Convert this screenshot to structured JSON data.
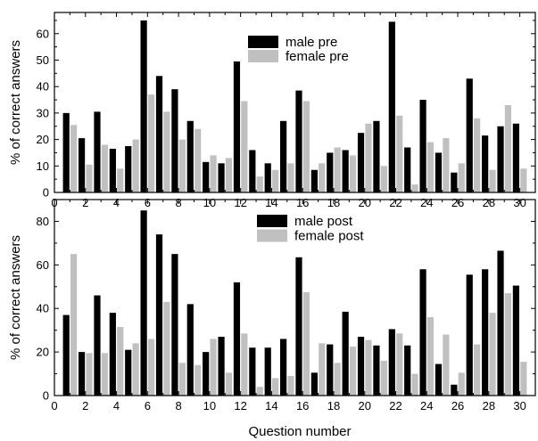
{
  "figure": {
    "xlabel": "Question number"
  },
  "chart_data": [
    {
      "type": "bar",
      "title": "",
      "xlabel": "",
      "ylabel": "% of correct answers",
      "x": [
        1,
        2,
        3,
        4,
        5,
        6,
        7,
        8,
        9,
        10,
        11,
        12,
        13,
        14,
        15,
        16,
        17,
        18,
        19,
        20,
        21,
        22,
        23,
        24,
        25,
        26,
        27,
        28,
        29,
        30
      ],
      "xlim": [
        0,
        31
      ],
      "xticks": [
        0,
        2,
        4,
        6,
        8,
        10,
        12,
        14,
        16,
        18,
        20,
        22,
        24,
        26,
        28,
        30
      ],
      "ylim": [
        0,
        68
      ],
      "yticks": [
        0,
        10,
        20,
        30,
        40,
        50,
        60
      ],
      "legend_position": "top-center",
      "series": [
        {
          "name": "male pre",
          "color": "#000000",
          "values": [
            30,
            20.5,
            30.5,
            16.5,
            17.5,
            65,
            44,
            39,
            27,
            11.5,
            11,
            49.5,
            16,
            11,
            27,
            38.5,
            8.5,
            15,
            16,
            22.5,
            27,
            64.5,
            17,
            35,
            15,
            7.5,
            43,
            21.5,
            25,
            26
          ]
        },
        {
          "name": "female pre",
          "color": "#c0c0c0",
          "values": [
            25.5,
            10.5,
            18,
            9,
            20,
            37,
            30.5,
            20,
            24,
            14,
            13,
            34.5,
            6,
            8.5,
            11,
            34.5,
            11,
            17,
            14,
            26,
            10,
            29,
            3,
            19,
            20.5,
            11,
            28,
            8.5,
            33,
            9
          ]
        }
      ]
    },
    {
      "type": "bar",
      "title": "",
      "xlabel": "Question number",
      "ylabel": "% of correct answers",
      "x": [
        1,
        2,
        3,
        4,
        5,
        6,
        7,
        8,
        9,
        10,
        11,
        12,
        13,
        14,
        15,
        16,
        17,
        18,
        19,
        20,
        21,
        22,
        23,
        24,
        25,
        26,
        27,
        28,
        29,
        30
      ],
      "xlim": [
        0,
        31
      ],
      "xticks": [
        0,
        2,
        4,
        6,
        8,
        10,
        12,
        14,
        16,
        18,
        20,
        22,
        24,
        26,
        28,
        30
      ],
      "ylim": [
        0,
        90
      ],
      "yticks": [
        0,
        20,
        40,
        60,
        80
      ],
      "legend_position": "top-center",
      "series": [
        {
          "name": "male post",
          "color": "#000000",
          "values": [
            37,
            20,
            46,
            38,
            21,
            85,
            74,
            65,
            42,
            20,
            27,
            52,
            22,
            22,
            26,
            63.5,
            10.5,
            23.5,
            38.5,
            27,
            23,
            30.5,
            23,
            58,
            14.5,
            5,
            55.5,
            58,
            66.5,
            50.5
          ]
        },
        {
          "name": "female post",
          "color": "#c0c0c0",
          "values": [
            65,
            19.5,
            19.5,
            31.5,
            24,
            26,
            43,
            15,
            14,
            26,
            10.5,
            28.5,
            4,
            8,
            9,
            47.5,
            24,
            15,
            22.5,
            25.5,
            16,
            28.5,
            10,
            36,
            28,
            10.5,
            23.5,
            38,
            47,
            15.5
          ]
        }
      ]
    }
  ]
}
